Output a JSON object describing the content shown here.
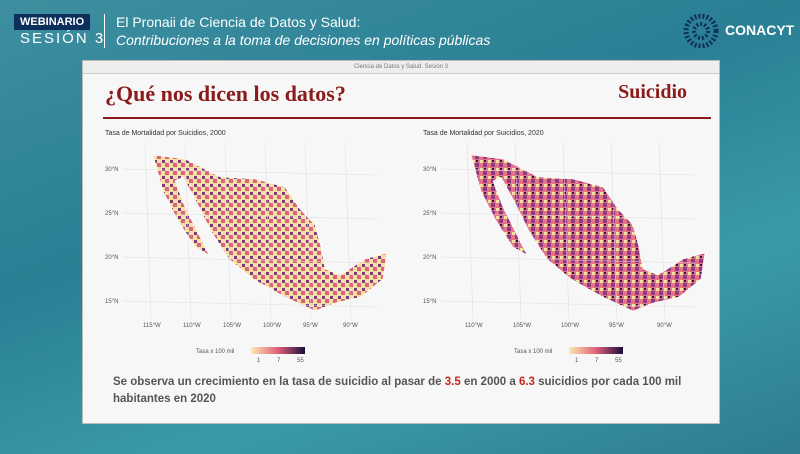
{
  "header": {
    "badge": "WEBINARIO",
    "session": "SESIÓN 3",
    "title": "El Pronaii de Ciencia de Datos y Salud:",
    "subtitle": "Contribuciones a la toma de decisiones en políticas públicas",
    "logo": "CONACYT"
  },
  "window": {
    "title": "Ciencia de Datos y Salud. Sesión 3"
  },
  "slide": {
    "title": "¿Qué nos dicen los datos?",
    "topic": "Suicidio",
    "maps": [
      {
        "title": "Tasa de Mortalidad por Suicidios, 2000",
        "lat_labels": [
          "30°N",
          "25°N",
          "20°N",
          "15°N"
        ],
        "lon_labels": [
          "115°W",
          "110°W",
          "105°W",
          "100°W",
          "95°W",
          "90°W"
        ],
        "legend_title": "Tasa x 100 mil",
        "legend_ticks": [
          "1",
          "7",
          "55"
        ]
      },
      {
        "title": "Tasa de Mortalidad por Suicidios, 2020",
        "lat_labels": [
          "30°N",
          "25°N",
          "20°N",
          "15°N"
        ],
        "lon_labels": [
          "110°W",
          "105°W",
          "100°W",
          "95°W",
          "90°W"
        ],
        "legend_title": "Tasa x 100 mil",
        "legend_ticks": [
          "1",
          "7",
          "55"
        ]
      }
    ],
    "caption": {
      "part1": "Se observa un crecimiento en la tasa de suicidio al pasar de",
      "rate_2000": "3.5",
      "part2": "en 2000 a",
      "rate_2020": "6.3",
      "part3": "suicidios por cada 100 mil habitantes en 2020"
    }
  }
}
